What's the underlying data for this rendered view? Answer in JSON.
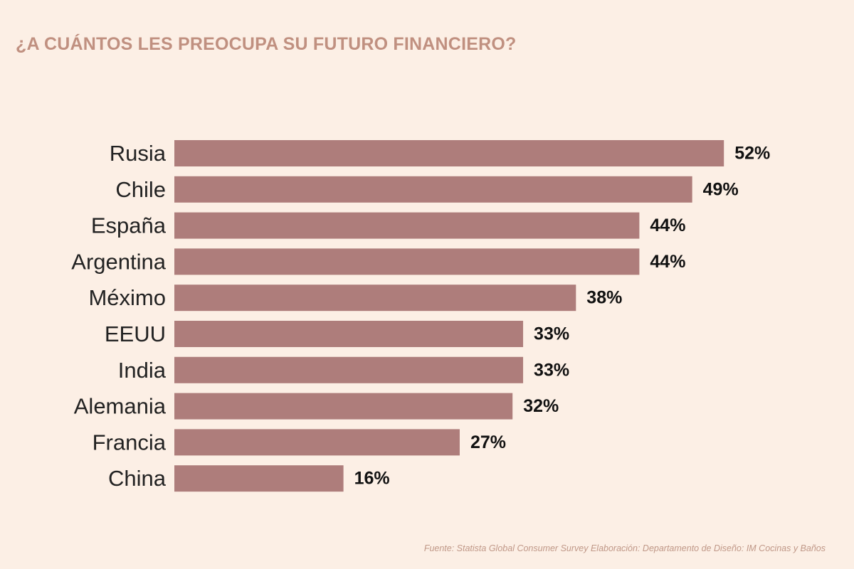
{
  "title": "¿A CUÁNTOS LES PREOCUPA SU FUTURO FINANCIERO?",
  "source": "Fuente: Statista Global Consumer Survey  Elaboración: Departamento de Diseño: IM Cocinas y Baños",
  "colors": {
    "background": "#fcefe5",
    "bar": "#ae7d7b",
    "title": "#c09080"
  },
  "chart_data": {
    "type": "bar",
    "orientation": "horizontal",
    "title": "¿A CUÁNTOS LES PREOCUPA SU FUTURO FINANCIERO?",
    "categories": [
      "Rusia",
      "Chile",
      "España",
      "Argentina",
      "Méximo",
      "EEUU",
      "India",
      "Alemania",
      "Francia",
      "China"
    ],
    "values": [
      52,
      49,
      44,
      44,
      38,
      33,
      33,
      32,
      27,
      16
    ],
    "value_labels": [
      "52%",
      "49%",
      "44%",
      "44%",
      "38%",
      "33%",
      "33%",
      "32%",
      "27%",
      "16%"
    ],
    "xlabel": "",
    "ylabel": "",
    "grid": false,
    "legend": "none"
  }
}
